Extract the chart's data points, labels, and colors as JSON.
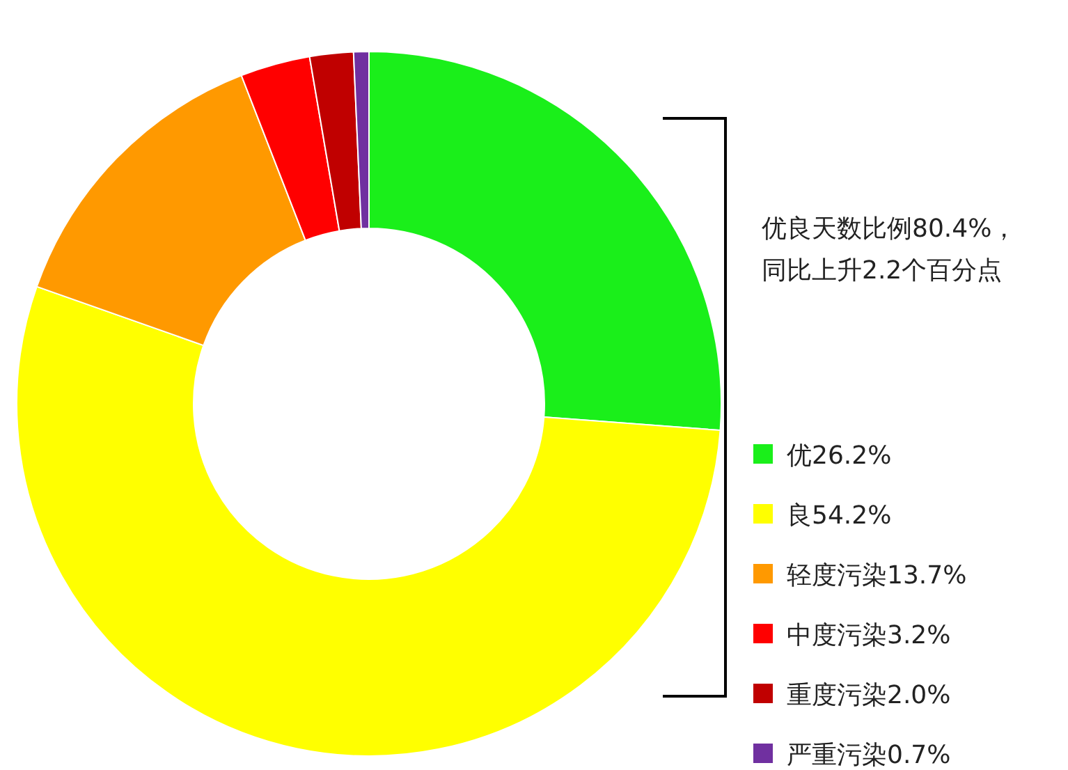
{
  "chart_data": {
    "type": "donut",
    "categories": [
      "优",
      "良",
      "轻度污染",
      "中度污染",
      "重度污染",
      "严重污染"
    ],
    "values": [
      26.2,
      54.2,
      13.7,
      3.2,
      2.0,
      0.7
    ],
    "value_labels": [
      "26.2%",
      "54.2%",
      "13.7%",
      "3.2%",
      "2.0%",
      "0.7%"
    ],
    "colors": [
      "#1aef1a",
      "#ffff00",
      "#ff9900",
      "#ff0000",
      "#c00000",
      "#7030a0"
    ],
    "legend": "right",
    "annotations": [
      "优良天数比例80.4%，",
      "同比上升2.2个百分点"
    ]
  }
}
